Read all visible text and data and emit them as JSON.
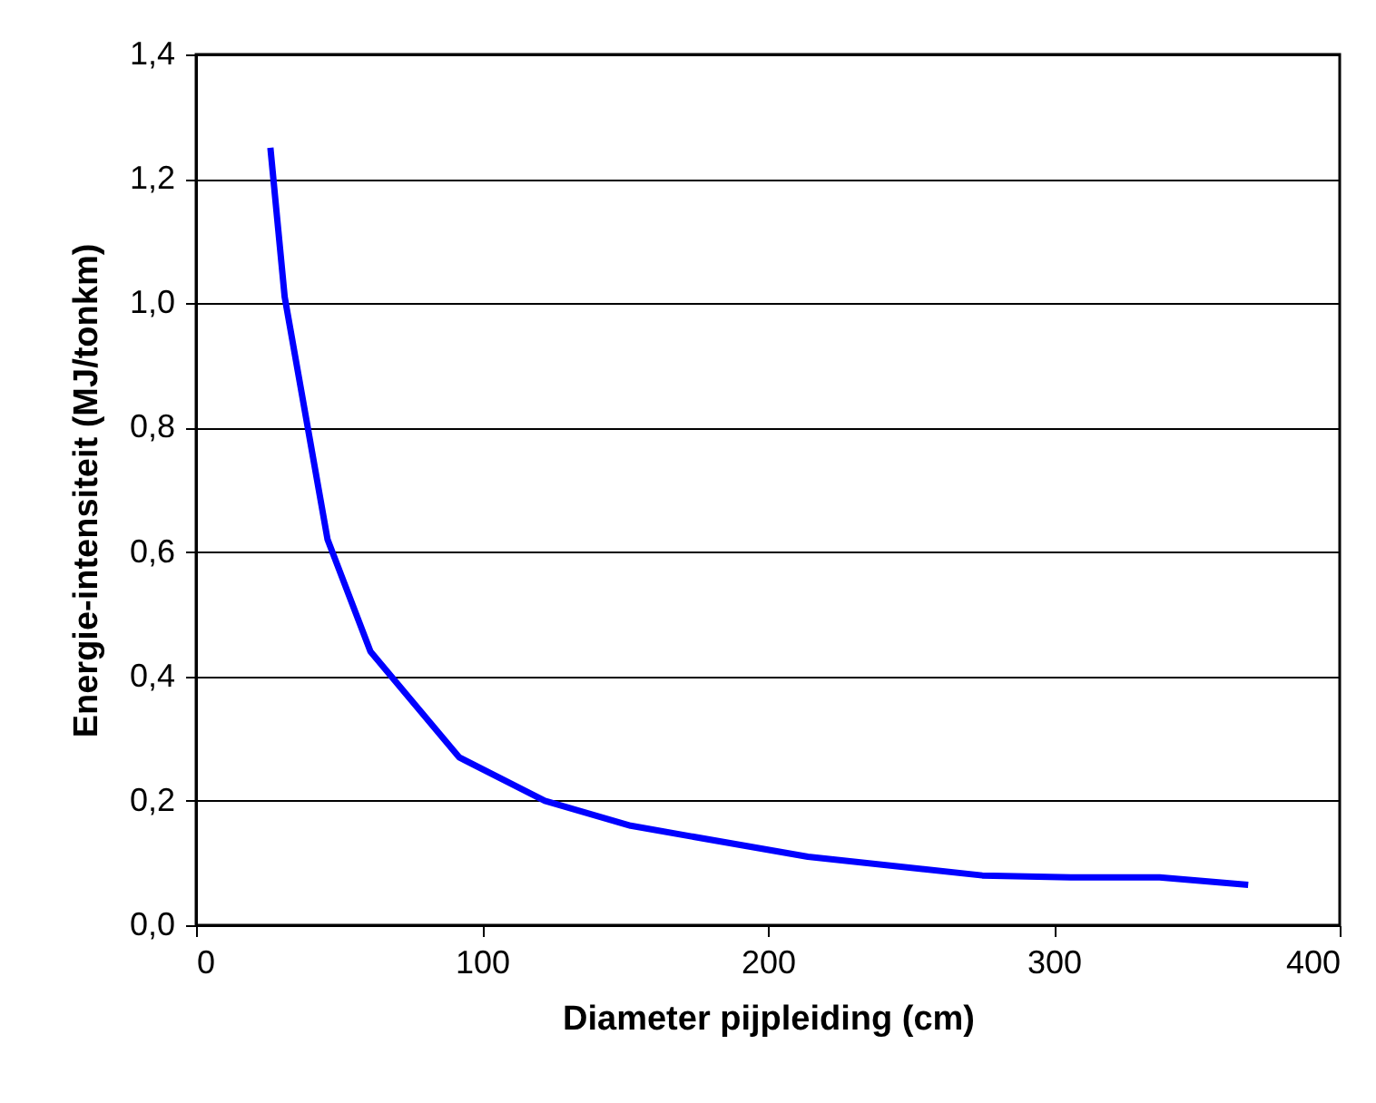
{
  "chart_data": {
    "type": "line",
    "xlabel": "Diameter pijpleiding (cm)",
    "ylabel": "Energie-intensiteit (MJ/tonkm)",
    "x": [
      26,
      31,
      46,
      61,
      92,
      122,
      152,
      214,
      275,
      306,
      337,
      368
    ],
    "series": [
      {
        "color": "#0000ff",
        "values": [
          1.25,
          1.01,
          0.62,
          0.44,
          0.27,
          0.2,
          0.16,
          0.11,
          0.08,
          0.077,
          0.077,
          0.065
        ]
      }
    ],
    "xlim": [
      0,
      400
    ],
    "xticks": [
      0,
      100,
      200,
      300,
      400
    ],
    "ylim": [
      0,
      1.4
    ],
    "yticks": [
      {
        "value": 0,
        "label": "0,0"
      },
      {
        "value": 0.2,
        "label": "0,2"
      },
      {
        "value": 0.4,
        "label": "0,4"
      },
      {
        "value": 0.6,
        "label": "0,6"
      },
      {
        "value": 0.8,
        "label": "0,8"
      },
      {
        "value": 1.0,
        "label": "1,0"
      },
      {
        "value": 1.2,
        "label": "1,2"
      },
      {
        "value": 1.4,
        "label": "1,4"
      }
    ],
    "grid": "y",
    "legend": false,
    "marker": "none",
    "line_style": "solid"
  }
}
